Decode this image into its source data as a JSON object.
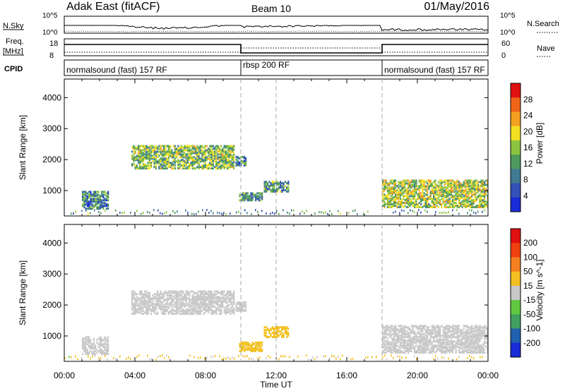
{
  "header": {
    "station": "Adak East (fitACF)",
    "beam": "Beam 10",
    "date": "01/May/2016"
  },
  "top_panels": {
    "nsky_label": "N.Sky",
    "nsearch_label": "N.Search",
    "nsky_ticks": [
      "10^5",
      "10^0"
    ],
    "nsearch_ticks": [
      "10^5",
      "10^0"
    ],
    "freq_label": "Freq.",
    "freq_unit": "[MHz]",
    "freq_ticks": [
      "18",
      "8"
    ],
    "nave_label": "Nave",
    "nave_ticks": [
      "60",
      "0"
    ],
    "cpid_label": "CPID",
    "modes": [
      {
        "name": "normalsound (fast) 157 RF",
        "start_hour": 0,
        "end_hour": 10
      },
      {
        "name": "rbsp 200 RF",
        "start_hour": 10,
        "end_hour": 18
      },
      {
        "name": "normalsound (fast) 157 RF",
        "start_hour": 18,
        "end_hour": 24
      }
    ]
  },
  "chart_data": [
    {
      "type": "heatmap",
      "title": "",
      "xlabel": "",
      "ylabel": "Slant Range [km]",
      "xlim": [
        0,
        24
      ],
      "ylim": [
        180,
        4600
      ],
      "yticks": [
        1000,
        2000,
        3000,
        4000
      ],
      "colorbar": {
        "label": "Power [dB]",
        "range": [
          0,
          32
        ],
        "ticks": [
          "4",
          "8",
          "12",
          "16",
          "20",
          "24",
          "28"
        ],
        "colors": [
          "#1a2bd8",
          "#3450b8",
          "#3f7a92",
          "#4e9a5c",
          "#8cc440",
          "#f2e020",
          "#f4a020",
          "#f06418",
          "#e01010"
        ]
      },
      "echo_regions": [
        {
          "t0": 1.0,
          "t1": 2.5,
          "r0": 450,
          "r1": 1000,
          "value": 9
        },
        {
          "t0": 3.8,
          "t1": 9.6,
          "r0": 1750,
          "r1": 2500,
          "value": 15
        },
        {
          "t0": 9.7,
          "t1": 10.3,
          "r0": 1850,
          "r1": 2150,
          "value": 10
        },
        {
          "t0": 9.9,
          "t1": 11.2,
          "r0": 720,
          "r1": 960,
          "value": 11
        },
        {
          "t0": 11.3,
          "t1": 12.7,
          "r0": 1000,
          "r1": 1350,
          "value": 12
        },
        {
          "t0": 18.0,
          "t1": 24.0,
          "r0": 500,
          "r1": 1400,
          "value": 17
        }
      ]
    },
    {
      "type": "heatmap",
      "title": "",
      "xlabel": "Time UT",
      "ylabel": "Slant Range [km]",
      "xlim": [
        0,
        24
      ],
      "ylim": [
        180,
        4600
      ],
      "xticks": [
        "00:00",
        "04:00",
        "08:00",
        "12:00",
        "16:00",
        "20:00",
        "00:00"
      ],
      "yticks": [
        1000,
        2000,
        3000,
        4000
      ],
      "colorbar": {
        "label": "Velocity [m s^-1]",
        "range": [
          -250,
          250
        ],
        "ticks": [
          "200",
          "100",
          "50",
          "15",
          "-15",
          "-50",
          "-100",
          "-200"
        ],
        "colors": [
          "#1a2bd8",
          "#2060b0",
          "#40a060",
          "#60c840",
          "#c8c8c8",
          "#f2c020",
          "#f48020",
          "#f04010",
          "#e01010"
        ]
      },
      "echo_regions": [
        {
          "t0": 1.0,
          "t1": 2.5,
          "r0": 450,
          "r1": 1000,
          "value": 0
        },
        {
          "t0": 3.8,
          "t1": 9.6,
          "r0": 1750,
          "r1": 2500,
          "value": -5
        },
        {
          "t0": 9.7,
          "t1": 10.3,
          "r0": 1850,
          "r1": 2150,
          "value": 0
        },
        {
          "t0": 9.9,
          "t1": 11.2,
          "r0": 550,
          "r1": 850,
          "value": 40
        },
        {
          "t0": 11.3,
          "t1": 12.7,
          "r0": 1000,
          "r1": 1350,
          "value": 40
        },
        {
          "t0": 18.0,
          "t1": 24.0,
          "r0": 500,
          "r1": 1400,
          "value": 0
        }
      ]
    }
  ]
}
